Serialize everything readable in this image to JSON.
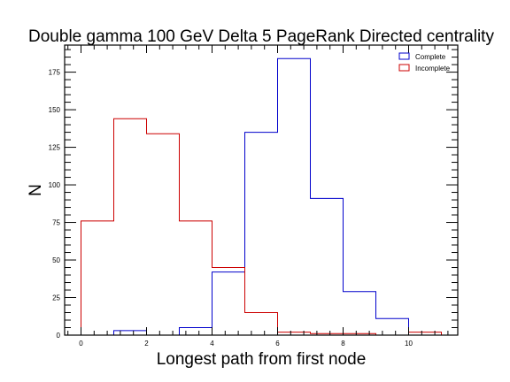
{
  "chart_data": {
    "type": "histogram",
    "title": "Double gamma 100 GeV Delta 5 PageRank Directed centrality",
    "xlabel": "Longest path from first node",
    "ylabel": "N",
    "xlim": [
      -0.5,
      11.5
    ],
    "ylim": [
      0,
      193
    ],
    "x_ticks": [
      0,
      2,
      4,
      6,
      8,
      10
    ],
    "y_ticks": [
      0,
      25,
      50,
      75,
      100,
      125,
      150,
      175
    ],
    "bin_edges": [
      0,
      1,
      2,
      3,
      4,
      5,
      6,
      7,
      8,
      9,
      10,
      11
    ],
    "grid": false,
    "legend_position": "top-right",
    "series": [
      {
        "name": "Complete",
        "color": "#0000cc",
        "values": [
          0,
          3,
          0,
          5,
          42,
          135,
          184,
          91,
          29,
          11,
          0
        ]
      },
      {
        "name": "Incomplete",
        "color": "#cc0000",
        "values": [
          76,
          144,
          134,
          76,
          45,
          15,
          2,
          1,
          1,
          0,
          2
        ]
      }
    ]
  }
}
